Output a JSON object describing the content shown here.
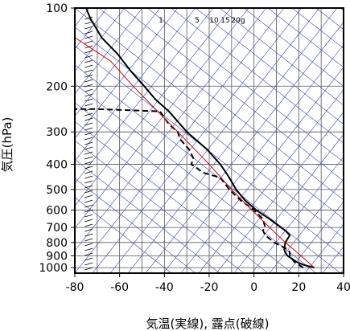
{
  "chart_data": {
    "type": "line",
    "title": "",
    "xlabel": "気温(実線), 露点(破線)",
    "ylabel": "気圧(hPa)",
    "xlim": [
      -80,
      40
    ],
    "ylim_hpa": [
      1050,
      100
    ],
    "y_scale": "log",
    "x_ticks": [
      "-80",
      "-60",
      "-40",
      "-20",
      "0",
      "20",
      "40"
    ],
    "x_tick_values": [
      -80,
      -60,
      -40,
      -20,
      0,
      20,
      40
    ],
    "y_ticks": [
      "100",
      "200",
      "300",
      "400",
      "500",
      "600",
      "700",
      "800",
      "900",
      "1000"
    ],
    "y_tick_values": [
      100,
      200,
      300,
      400,
      500,
      600,
      700,
      800,
      900,
      1000
    ],
    "skew_deg_per_decade_note": "",
    "mixing_ratio_labels": [
      "1",
      "5",
      "10",
      "15",
      "20g"
    ],
    "series": [
      {
        "key": "temperature",
        "style": "solid",
        "color": "#000000",
        "points": [
          [
            1000,
            27
          ],
          [
            975,
            22
          ],
          [
            950,
            19
          ],
          [
            925,
            17
          ],
          [
            900,
            15
          ],
          [
            875,
            14
          ],
          [
            850,
            13.5
          ],
          [
            800,
            14
          ],
          [
            775,
            15
          ],
          [
            750,
            16
          ],
          [
            720,
            14
          ],
          [
            700,
            12
          ],
          [
            650,
            7
          ],
          [
            600,
            1
          ],
          [
            550,
            -4
          ],
          [
            500,
            -8
          ],
          [
            450,
            -11
          ],
          [
            400,
            -15
          ],
          [
            350,
            -21
          ],
          [
            300,
            -30
          ],
          [
            250,
            -38
          ],
          [
            225,
            -44
          ],
          [
            200,
            -49
          ],
          [
            175,
            -55
          ],
          [
            150,
            -61
          ],
          [
            130,
            -68
          ],
          [
            110,
            -73
          ],
          [
            100,
            -75
          ]
        ]
      },
      {
        "key": "dewpoint",
        "style": "dashed",
        "color": "#000000",
        "points": [
          [
            1000,
            22
          ],
          [
            975,
            20
          ],
          [
            950,
            18
          ],
          [
            925,
            17
          ],
          [
            900,
            16
          ],
          [
            875,
            16
          ],
          [
            850,
            15
          ],
          [
            800,
            9
          ],
          [
            750,
            5
          ],
          [
            720,
            4
          ],
          [
            700,
            5
          ],
          [
            650,
            4
          ],
          [
            600,
            0
          ],
          [
            550,
            -6
          ],
          [
            500,
            -11
          ],
          [
            450,
            -15
          ],
          [
            430,
            -23
          ],
          [
            410,
            -26
          ],
          [
            400,
            -28
          ],
          [
            380,
            -27
          ],
          [
            350,
            -29
          ],
          [
            320,
            -33
          ],
          [
            300,
            -34
          ],
          [
            280,
            -38
          ],
          [
            250,
            -42
          ],
          [
            245,
            -70
          ],
          [
            245,
            -80
          ]
        ]
      },
      {
        "key": "parcel",
        "style": "solid",
        "color": "#dd0000",
        "points": [
          [
            1000,
            27
          ],
          [
            900,
            21
          ],
          [
            800,
            14
          ],
          [
            700,
            7
          ],
          [
            600,
            -1
          ],
          [
            500,
            -10
          ],
          [
            400,
            -20
          ],
          [
            300,
            -34
          ],
          [
            250,
            -43
          ],
          [
            200,
            -54
          ],
          [
            175,
            -60
          ],
          [
            160,
            -64
          ],
          [
            130,
            -80
          ]
        ]
      }
    ],
    "wind_profile_shown": true,
    "grid": true
  }
}
